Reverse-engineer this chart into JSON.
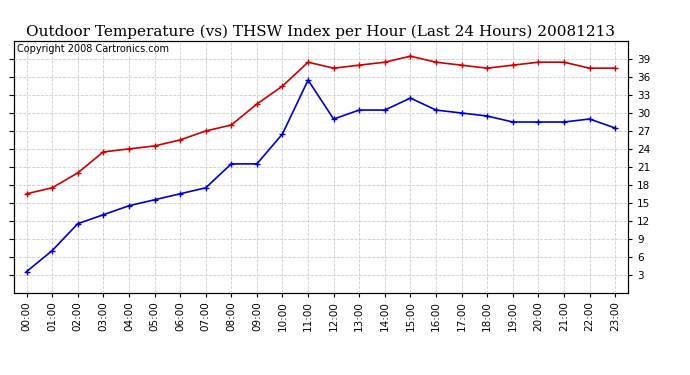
{
  "title": "Outdoor Temperature (vs) THSW Index per Hour (Last 24 Hours) 20081213",
  "copyright": "Copyright 2008 Cartronics.com",
  "hours": [
    "00:00",
    "01:00",
    "02:00",
    "03:00",
    "04:00",
    "05:00",
    "06:00",
    "07:00",
    "08:00",
    "09:00",
    "10:00",
    "11:00",
    "12:00",
    "13:00",
    "14:00",
    "15:00",
    "16:00",
    "17:00",
    "18:00",
    "19:00",
    "20:00",
    "21:00",
    "22:00",
    "23:00"
  ],
  "thsw": [
    3.5,
    7.0,
    11.5,
    13.0,
    14.5,
    15.5,
    16.5,
    17.5,
    21.5,
    21.5,
    26.5,
    35.5,
    29.0,
    30.5,
    30.5,
    32.5,
    30.5,
    30.0,
    29.5,
    28.5,
    28.5,
    28.5,
    29.0,
    27.5
  ],
  "outdoor_temp": [
    16.5,
    17.5,
    20.0,
    23.5,
    24.0,
    24.5,
    25.5,
    27.0,
    28.0,
    31.5,
    34.5,
    38.5,
    37.5,
    38.0,
    38.5,
    39.5,
    38.5,
    38.0,
    37.5,
    38.0,
    38.5,
    38.5,
    37.5,
    37.5
  ],
  "thsw_color": "#0000cc",
  "outdoor_temp_color": "#cc0000",
  "background_color": "#ffffff",
  "grid_color": "#cccccc",
  "ylim": [
    0,
    42
  ],
  "yticks": [
    3.0,
    6.0,
    9.0,
    12.0,
    15.0,
    18.0,
    21.0,
    24.0,
    27.0,
    30.0,
    33.0,
    36.0,
    39.0
  ],
  "title_fontsize": 11,
  "copyright_fontsize": 7,
  "tick_fontsize": 7.5,
  "marker": "+",
  "marker_size": 5,
  "line_width": 1.2
}
